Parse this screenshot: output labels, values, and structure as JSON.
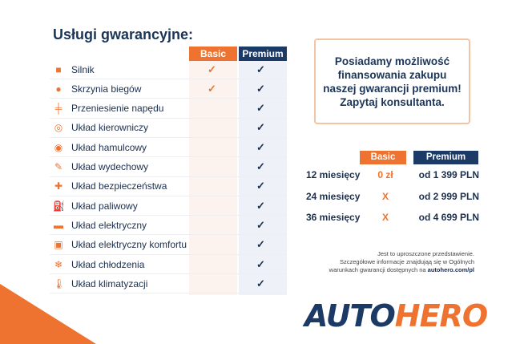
{
  "title": "Usługi gwarancyjne:",
  "columns": {
    "basic": "Basic",
    "premium": "Premium"
  },
  "services": [
    {
      "label": "Silnik",
      "icon": "engine-icon",
      "basic": "✓",
      "premium": "✓"
    },
    {
      "label": "Skrzynia biegów",
      "icon": "gearbox-icon",
      "basic": "✓",
      "premium": "✓"
    },
    {
      "label": "Przeniesienie napędu",
      "icon": "drivetrain-icon",
      "basic": "",
      "premium": "✓"
    },
    {
      "label": "Układ kierowniczy",
      "icon": "steering-wheel-icon",
      "basic": "",
      "premium": "✓"
    },
    {
      "label": "Układ hamulcowy",
      "icon": "brake-icon",
      "basic": "",
      "premium": "✓"
    },
    {
      "label": "Układ wydechowy",
      "icon": "exhaust-icon",
      "basic": "",
      "premium": "✓"
    },
    {
      "label": "Układ bezpieczeństwa",
      "icon": "airbag-icon",
      "basic": "",
      "premium": "✓"
    },
    {
      "label": "Układ paliwowy",
      "icon": "fuel-icon",
      "basic": "",
      "premium": "✓"
    },
    {
      "label": "Układ elektryczny",
      "icon": "battery-icon",
      "basic": "",
      "premium": "✓"
    },
    {
      "label": "Układ elektryczny komfortu",
      "icon": "chip-icon",
      "basic": "",
      "premium": "✓"
    },
    {
      "label": "Układ chłodzenia",
      "icon": "snowflake-icon",
      "basic": "",
      "premium": "✓"
    },
    {
      "label": "Układ klimatyzacji",
      "icon": "thermometer-icon",
      "basic": "",
      "premium": "✓"
    }
  ],
  "financing": "Posiadamy możliwość finansowania zakupu naszej gwarancji premium! Zapytaj konsultanta.",
  "pricing": [
    {
      "period": "12 miesięcy",
      "basic": "0 zł",
      "premium": "od 1 399 PLN"
    },
    {
      "period": "24 miesięcy",
      "basic": "X",
      "premium": "od 2 999 PLN"
    },
    {
      "period": "36 miesięcy",
      "basic": "X",
      "premium": "od 4 699 PLN"
    }
  ],
  "note": {
    "line1": "Jest to uproszczone przedstawienie.",
    "line2": "Szczegółowe informacje znajdująą się w Ogólnych",
    "line3": "warunkach gwarancji dostępnych na ",
    "link": "autohero.com/pl"
  },
  "logo": {
    "part1": "AUTO",
    "part2": "HERO"
  },
  "colors": {
    "orange": "#ee7330",
    "navy": "#1b3a66"
  }
}
